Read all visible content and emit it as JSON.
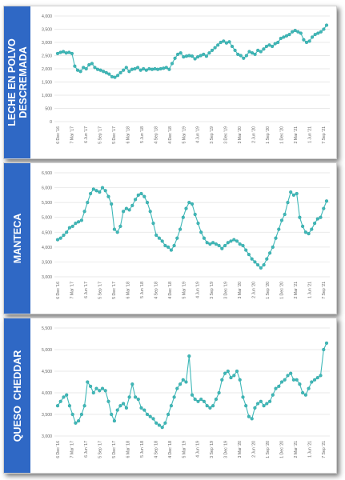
{
  "chart_data": [
    {
      "type": "line",
      "title": "LECHE EN POLVO DESCREMADA",
      "title_lines": [
        "LECHE EN POLVO",
        "DESCREMADA"
      ],
      "ylim": [
        0,
        4000
      ],
      "yticks": [
        "0",
        "500",
        "1,000",
        "1,500",
        "2,000",
        "2,500",
        "3,000",
        "3,500",
        "4,000"
      ],
      "xticks": [
        "6 Dec '16",
        "7 Mar '17",
        "6 Jun '17",
        "5 Sep '17",
        "5 Dec '17",
        "6 Mar '18",
        "5 Jun '18",
        "4 Sep '18",
        "4 Dec '18",
        "5 Mar '19",
        "4 Jun '19",
        "3 Sep '19",
        "3 Dec '19",
        "3 Mar '20",
        "2 Jun '20",
        "1 Sep '20",
        "1 Dec '20",
        "2 Mar '21",
        "1 Jun '21",
        "7 Sep '21"
      ],
      "line_color": "#3fb8b8",
      "values": [
        2580,
        2620,
        2650,
        2600,
        2620,
        2580,
        2100,
        1950,
        1900,
        2050,
        2000,
        2150,
        2200,
        2050,
        1980,
        1950,
        1900,
        1850,
        1800,
        1700,
        1680,
        1750,
        1850,
        1950,
        2050,
        1900,
        1980,
        2000,
        2050,
        1950,
        2000,
        1950,
        2000,
        1980,
        2000,
        1980,
        2000,
        2020,
        2050,
        1980,
        2200,
        2400,
        2550,
        2600,
        2450,
        2480,
        2500,
        2480,
        2380,
        2450,
        2500,
        2550,
        2480,
        2600,
        2700,
        2800,
        2900,
        3000,
        3050,
        2980,
        3020,
        2850,
        2700,
        2550,
        2500,
        2400,
        2500,
        2650,
        2600,
        2550,
        2700,
        2650,
        2750,
        2850,
        2900,
        2850,
        2950,
        3000,
        3150,
        3200,
        3250,
        3300,
        3400,
        3450,
        3400,
        3350,
        3100,
        3000,
        3050,
        3200,
        3300,
        3350,
        3400,
        3500,
        3650
      ]
    },
    {
      "type": "line",
      "title": "MANTECA",
      "title_lines": [
        "MANTECA"
      ],
      "ylim": [
        3000,
        6500
      ],
      "yticks": [
        "3,000",
        "3,500",
        "4,000",
        "4,500",
        "5,000",
        "5,500",
        "6,000",
        "6,500"
      ],
      "xticks": [
        "6 Dec '16",
        "7 Mar '17",
        "6 Jun '17",
        "5 Sep '17",
        "5 Dec '17",
        "6 Mar '18",
        "5 Jun '18",
        "4 Sep '18",
        "4 Dec '18",
        "5 Mar '19",
        "4 Jun '19",
        "3 Sep '19",
        "3 Dec '19",
        "3 Mar '20",
        "2 Jun '20",
        "1 Sep '20",
        "1 Dec '20",
        "2 Mar '21",
        "1 Jun '21",
        "7 Sep '21"
      ],
      "line_color": "#3fb8b8",
      "values": [
        4250,
        4300,
        4400,
        4500,
        4650,
        4700,
        4800,
        4850,
        4900,
        5200,
        5500,
        5800,
        5950,
        5900,
        5850,
        6000,
        5900,
        5700,
        5450,
        4600,
        4500,
        4700,
        5200,
        5300,
        5250,
        5400,
        5600,
        5750,
        5800,
        5700,
        5500,
        5200,
        4800,
        4400,
        4300,
        4200,
        4050,
        4000,
        3900,
        4050,
        4300,
        4600,
        5000,
        5300,
        5500,
        5450,
        5100,
        4800,
        4500,
        4300,
        4150,
        4100,
        4150,
        4100,
        4050,
        3950,
        4050,
        4150,
        4200,
        4250,
        4200,
        4100,
        4050,
        3900,
        3750,
        3600,
        3500,
        3400,
        3300,
        3400,
        3600,
        3800,
        4000,
        4300,
        4600,
        4900,
        5100,
        5500,
        5850,
        5750,
        5800,
        5000,
        4700,
        4500,
        4450,
        4600,
        4800,
        4950,
        5000,
        5300,
        5550
      ]
    },
    {
      "type": "line",
      "title": "QUESO CHEDDAR",
      "title_lines": [
        "QUESO  CHEDDAR"
      ],
      "ylim": [
        3000,
        5500
      ],
      "yticks": [
        "3,000",
        "3,500",
        "4,000",
        "4,500",
        "5,000",
        "5,500"
      ],
      "xticks": [
        "6 Dec '16",
        "7 Mar '17",
        "6 Jun '17",
        "5 Sep '17",
        "5 Dec '17",
        "6 Mar '18",
        "5 Jun '18",
        "4 Sep '18",
        "4 Dec '18",
        "5 Mar '19",
        "4 Jun '19",
        "3 Sep '19",
        "3 Dec '19",
        "3 Mar '20",
        "2 Jun '20",
        "1 Sep '20",
        "1 Dec '20",
        "2 Mar '21",
        "1 Jun '21",
        "7 Sep '21"
      ],
      "line_color": "#3fb8b8",
      "values": [
        3700,
        3800,
        3900,
        3950,
        3700,
        3500,
        3300,
        3350,
        3500,
        3700,
        4250,
        4150,
        4000,
        4100,
        4050,
        4100,
        4050,
        3800,
        3500,
        3350,
        3600,
        3700,
        3750,
        3650,
        3900,
        4200,
        3900,
        3850,
        3650,
        3600,
        3500,
        3450,
        3400,
        3300,
        3250,
        3200,
        3300,
        3500,
        3700,
        3900,
        4100,
        4200,
        4300,
        4250,
        4850,
        3950,
        3850,
        3800,
        3850,
        3800,
        3700,
        3650,
        3700,
        3850,
        4000,
        4300,
        4450,
        4500,
        4350,
        4400,
        4500,
        4300,
        3900,
        3700,
        3450,
        3400,
        3650,
        3750,
        3800,
        3700,
        3750,
        3800,
        3950,
        4100,
        4150,
        4250,
        4300,
        4400,
        4450,
        4300,
        4300,
        4200,
        4000,
        3950,
        4100,
        4250,
        4300,
        4350,
        4400,
        5000,
        5150
      ]
    }
  ]
}
